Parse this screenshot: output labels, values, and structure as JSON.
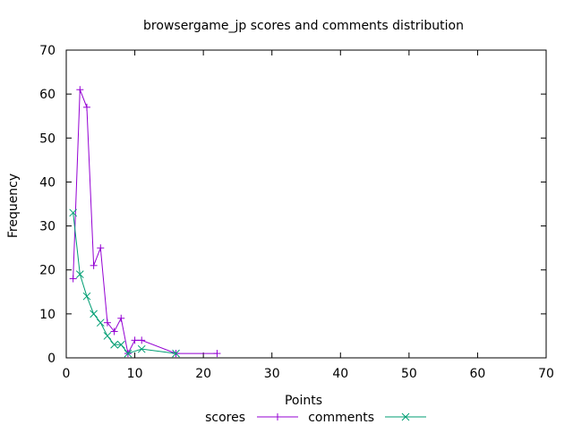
{
  "chart_data": {
    "type": "line",
    "title": "browsergame_jp scores and comments distribution",
    "xlabel": "Points",
    "ylabel": "Frequency",
    "xlim": [
      0,
      70
    ],
    "ylim": [
      0,
      70
    ],
    "x_ticks": [
      0,
      10,
      20,
      30,
      40,
      50,
      60,
      70
    ],
    "y_ticks": [
      0,
      10,
      20,
      30,
      40,
      50,
      60,
      70
    ],
    "grid": false,
    "legend_position": "bottom-center",
    "series": [
      {
        "name": "scores",
        "color": "#9400d3",
        "marker": "plus",
        "x": [
          1,
          2,
          3,
          4,
          5,
          6,
          7,
          8,
          9,
          10,
          11,
          16,
          22
        ],
        "y": [
          18,
          61,
          57,
          21,
          25,
          8,
          6,
          9,
          1,
          4,
          4,
          1,
          1
        ]
      },
      {
        "name": "comments",
        "color": "#009e73",
        "marker": "cross",
        "x": [
          1,
          2,
          3,
          4,
          5,
          6,
          7,
          8,
          9,
          11,
          16
        ],
        "y": [
          33,
          19,
          14,
          10,
          8,
          5,
          3,
          3,
          1,
          2,
          1
        ]
      }
    ]
  }
}
